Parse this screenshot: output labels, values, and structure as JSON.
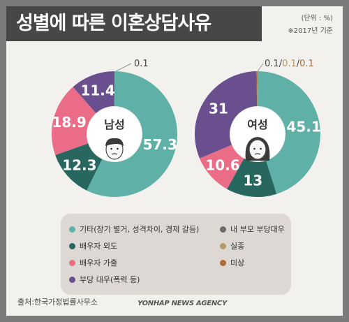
{
  "header": {
    "title": "성별에 따른 이혼상담사유",
    "unit": "(단위 : %)",
    "note": "※2017년 기준"
  },
  "footer": {
    "source": "출처:한국가정법률사무소",
    "credit": "YONHAP NEWS AGENCY"
  },
  "colors": {
    "other": "#5fb0a7",
    "spouse_affair": "#27675f",
    "spouse_runaway": "#ea6c86",
    "unfair_treatment": "#6a4f8e",
    "in_laws": "#6b6b6b",
    "missing": "#b49a6a",
    "unknown": "#b06a36"
  },
  "chart_data": {
    "type": "pie",
    "categories": [
      "기타(장기 별거, 성격차이, 경제 갈등)",
      "배우자 외도",
      "배우자 가출",
      "부당 대우(폭력 등)",
      "내 부모 부당대우",
      "실종",
      "미상"
    ],
    "series": [
      {
        "name": "남성",
        "values": [
          57.3,
          12.3,
          18.9,
          11.4,
          0.1,
          0.0,
          0.0
        ]
      },
      {
        "name": "여성",
        "values": [
          45.1,
          13,
          10.6,
          31,
          0.1,
          0.1,
          0.1
        ]
      }
    ],
    "small_label_male": "0.1",
    "small_label_female": [
      "0.1",
      "0.1",
      "0.1"
    ],
    "labels_male": [
      "57.3",
      "12.3",
      "18.9",
      "11.4"
    ],
    "labels_female": [
      "45.1",
      "13",
      "10.6",
      "31"
    ]
  }
}
